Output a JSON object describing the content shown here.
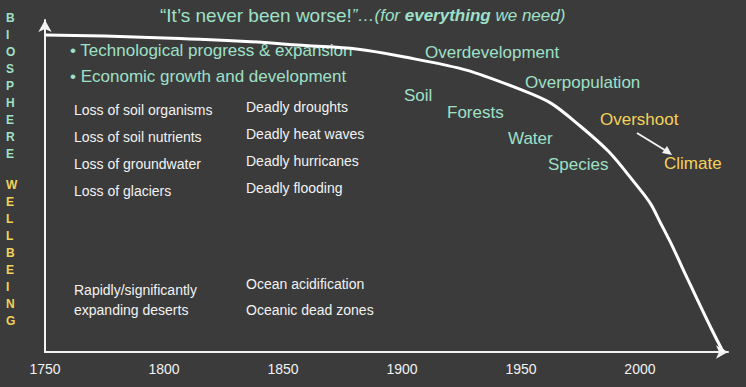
{
  "chart_data": {
    "type": "line",
    "title": [
      {
        "text": "“It’s never been ",
        "style": "plain"
      },
      {
        "text": "worse!",
        "style": "highlight"
      },
      {
        "text": "”…(for ",
        "style": "italic"
      },
      {
        "text": "everything",
        "style": "underline"
      },
      {
        "text": " we need)",
        "style": "italic"
      }
    ],
    "ylabel": "BIOSPHERE WELLBEING",
    "x": [
      1750,
      1800,
      1850,
      1900,
      1950,
      1975,
      2000,
      2010,
      2020,
      2030,
      2035
    ],
    "values": [
      95.5,
      94.6,
      92.8,
      89,
      79,
      68,
      49,
      37,
      22,
      7,
      0
    ],
    "color": "#ffffff",
    "xlim": [
      1750,
      2037
    ],
    "xticks": [
      1750,
      1800,
      1850,
      1900,
      1950,
      2000
    ],
    "ylim": [
      0,
      100
    ],
    "tick_labels": "x",
    "grid": false,
    "bullets": [
      "• Technological progress & expansion",
      "• Economic growth and development"
    ],
    "impacts_left": [
      "Loss of soil organisms",
      "Loss of soil nutrients",
      "Loss of groundwater",
      "Loss of glaciers",
      "Rapidly/significantly\nexpanding deserts"
    ],
    "impacts_right": [
      "Deadly droughts",
      "Deadly heat waves",
      "Deadly hurricanes",
      "Deadly flooding",
      "Ocean acidification",
      "Oceanic dead zones"
    ],
    "drivers": [
      "Overdevelopment",
      "Overpopulation",
      "Soil",
      "Forests",
      "Water",
      "Species"
    ],
    "overshoot": "Overshoot",
    "climate": "Climate"
  }
}
